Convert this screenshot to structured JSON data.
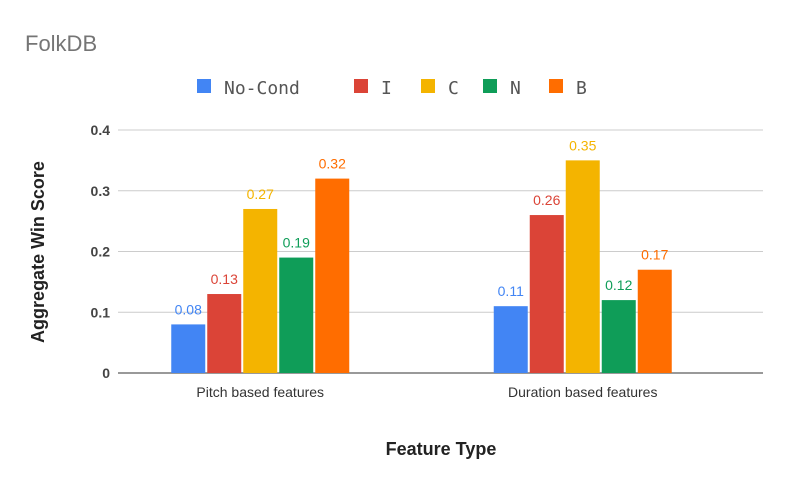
{
  "chart_data": {
    "type": "bar",
    "title": "FolkDB",
    "xlabel": "Feature Type",
    "ylabel": "Aggregate Win Score",
    "categories": [
      "Pitch based features",
      "Duration based features"
    ],
    "ylim": [
      0,
      0.4
    ],
    "yticks": [
      "0",
      "0.1",
      "0.2",
      "0.3",
      "0.4"
    ],
    "grid": true,
    "legend_position": "top",
    "series": [
      {
        "name": "No-Cond",
        "color": "#4285f4",
        "values": [
          0.08,
          0.11
        ],
        "labels": [
          "0.08",
          "0.11"
        ]
      },
      {
        "name": "I",
        "color": "#db4437",
        "values": [
          0.13,
          0.26
        ],
        "labels": [
          "0.13",
          "0.26"
        ]
      },
      {
        "name": "C",
        "color": "#f4b400",
        "values": [
          0.27,
          0.35
        ],
        "labels": [
          "0.27",
          "0.35"
        ]
      },
      {
        "name": "N",
        "color": "#0f9d58",
        "values": [
          0.19,
          0.12
        ],
        "labels": [
          "0.19",
          "0.12"
        ]
      },
      {
        "name": "B",
        "color": "#ff6d00",
        "values": [
          0.32,
          0.17
        ],
        "labels": [
          "0.32",
          "0.17"
        ]
      }
    ]
  }
}
